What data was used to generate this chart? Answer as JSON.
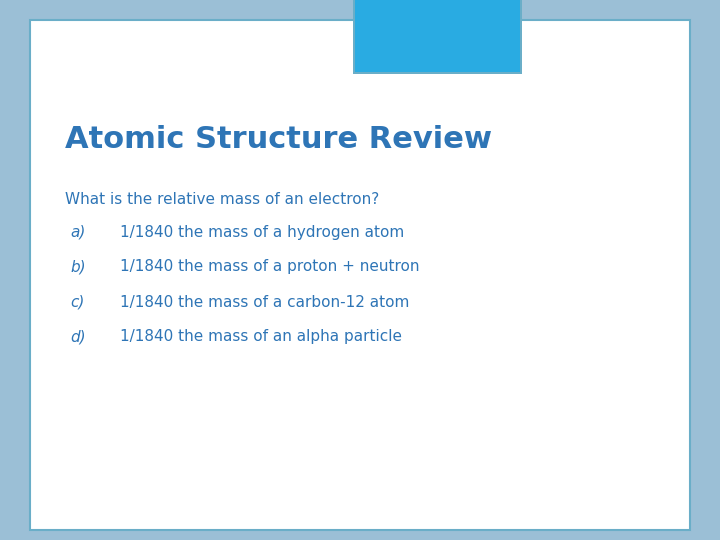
{
  "title": "Atomic Structure Review",
  "title_color": "#2E75B6",
  "title_fontsize": 22,
  "question": "What is the relative mass of an electron?",
  "question_color": "#2E75B6",
  "question_fontsize": 11,
  "options": [
    {
      "label": "a)",
      "text": "1/1840 the mass of a hydrogen atom"
    },
    {
      "label": "b)",
      "text": "1/1840 the mass of a proton + neutron"
    },
    {
      "label": "c)",
      "text": "1/1840 the mass of a carbon-12 atom"
    },
    {
      "label": "d)",
      "text": "1/1840 the mass of an alpha particle"
    }
  ],
  "option_label_color": "#2E75B6",
  "option_text_color": "#2E75B6",
  "option_fontsize": 11,
  "bg_outer": "#9BBFD6",
  "bg_card": "#FFFFFF",
  "card_border_color": "#6AAEC8",
  "tab_color": "#29ABE2",
  "tab_border_color": "#6AAEC8",
  "fig_width": 7.2,
  "fig_height": 5.4
}
